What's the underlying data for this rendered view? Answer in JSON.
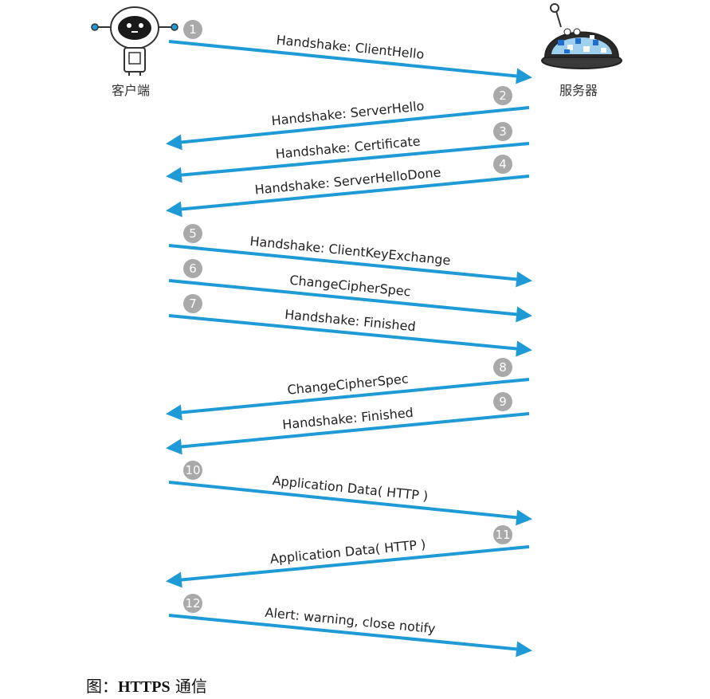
{
  "client": {
    "label": "客户端",
    "icon": "robot-client-icon"
  },
  "server": {
    "label": "服务器",
    "icon": "robot-server-icon"
  },
  "arrow_color": "#1e9ad6",
  "badge_color": "#a9a9a9",
  "messages": [
    {
      "step": "1",
      "direction": "client-to-server",
      "label": "Handshake: ClientHello"
    },
    {
      "step": "2",
      "direction": "server-to-client",
      "label": "Handshake: ServerHello"
    },
    {
      "step": "3",
      "direction": "server-to-client",
      "label": "Handshake: Certificate"
    },
    {
      "step": "4",
      "direction": "server-to-client",
      "label": "Handshake: ServerHelloDone"
    },
    {
      "step": "5",
      "direction": "client-to-server",
      "label": "Handshake: ClientKeyExchange"
    },
    {
      "step": "6",
      "direction": "client-to-server",
      "label": "ChangeCipherSpec"
    },
    {
      "step": "7",
      "direction": "client-to-server",
      "label": "Handshake: Finished"
    },
    {
      "step": "8",
      "direction": "server-to-client",
      "label": "ChangeCipherSpec"
    },
    {
      "step": "9",
      "direction": "server-to-client",
      "label": "Handshake: Finished"
    },
    {
      "step": "10",
      "direction": "client-to-server",
      "label": "Application Data( HTTP )"
    },
    {
      "step": "11",
      "direction": "server-to-client",
      "label": "Application Data( HTTP )"
    },
    {
      "step": "12",
      "direction": "client-to-server",
      "label": "Alert: warning, close notify"
    }
  ],
  "caption": {
    "prefix": "图：",
    "bold": "HTTPS",
    "suffix": " 通信"
  }
}
